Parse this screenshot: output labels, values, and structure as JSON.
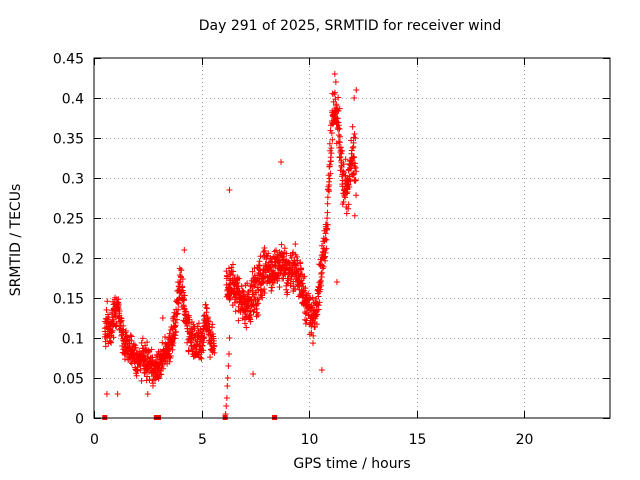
{
  "chart_data": {
    "type": "scatter",
    "title": "Day 291 of 2025, SRMTID for receiver wind",
    "xlabel": "GPS time / hours",
    "ylabel": "SRMTID / TECUs",
    "xlim": [
      0,
      24
    ],
    "ylim": [
      0,
      0.45
    ],
    "xticks": [
      0,
      5,
      10,
      15,
      20
    ],
    "xtick_labels": [
      "0",
      "5",
      "10",
      "15",
      "20"
    ],
    "yticks": [
      0,
      0.05,
      0.1,
      0.15,
      0.2,
      0.25,
      0.3,
      0.35,
      0.4,
      0.45
    ],
    "ytick_labels": [
      "0",
      "0.05",
      "0.1",
      "0.15",
      "0.2",
      "0.25",
      "0.3",
      "0.35",
      "0.4",
      "0.45"
    ],
    "grid": true,
    "marker": "+",
    "marker_color": "#ff0000",
    "series": [
      {
        "name": "SRMTID",
        "trend": [
          [
            0.5,
            0.11,
            0.03
          ],
          [
            0.8,
            0.12,
            0.035
          ],
          [
            1.1,
            0.14,
            0.02
          ],
          [
            1.4,
            0.09,
            0.02
          ],
          [
            1.7,
            0.085,
            0.025
          ],
          [
            2.0,
            0.07,
            0.02
          ],
          [
            2.3,
            0.075,
            0.025
          ],
          [
            2.6,
            0.065,
            0.025
          ],
          [
            2.9,
            0.06,
            0.02
          ],
          [
            3.2,
            0.075,
            0.025
          ],
          [
            3.5,
            0.09,
            0.025
          ],
          [
            3.8,
            0.12,
            0.03
          ],
          [
            4.0,
            0.17,
            0.025
          ],
          [
            4.3,
            0.12,
            0.03
          ],
          [
            4.6,
            0.1,
            0.03
          ],
          [
            5.0,
            0.09,
            0.03
          ],
          [
            5.2,
            0.13,
            0.03
          ],
          [
            5.5,
            0.09,
            0.025
          ],
          [
            6.3,
            0.17,
            0.04
          ],
          [
            6.6,
            0.16,
            0.03
          ],
          [
            7.0,
            0.14,
            0.03
          ],
          [
            7.3,
            0.15,
            0.04
          ],
          [
            7.6,
            0.16,
            0.04
          ],
          [
            8.0,
            0.19,
            0.03
          ],
          [
            8.3,
            0.18,
            0.03
          ],
          [
            8.7,
            0.2,
            0.035
          ],
          [
            9.0,
            0.18,
            0.03
          ],
          [
            9.4,
            0.19,
            0.03
          ],
          [
            9.8,
            0.15,
            0.03
          ],
          [
            10.2,
            0.12,
            0.03
          ],
          [
            10.5,
            0.17,
            0.03
          ],
          [
            10.8,
            0.23,
            0.03
          ],
          [
            11.0,
            0.34,
            0.05
          ],
          [
            11.2,
            0.39,
            0.03
          ],
          [
            11.4,
            0.36,
            0.04
          ],
          [
            11.6,
            0.29,
            0.04
          ],
          [
            11.8,
            0.28,
            0.04
          ],
          [
            12.0,
            0.33,
            0.04
          ],
          [
            12.2,
            0.3,
            0.06
          ]
        ],
        "notable_points": [
          [
            11.2,
            0.43
          ],
          [
            11.25,
            0.42
          ],
          [
            12.2,
            0.41
          ],
          [
            12.1,
            0.4
          ],
          [
            8.7,
            0.32
          ],
          [
            6.3,
            0.285
          ],
          [
            0.6,
            0.03
          ],
          [
            1.1,
            0.03
          ],
          [
            2.5,
            0.03
          ],
          [
            3.2,
            0.125
          ],
          [
            4.2,
            0.21
          ],
          [
            11.3,
            0.17
          ],
          [
            7.4,
            0.055
          ],
          [
            10.6,
            0.06
          ]
        ],
        "zero_points": [
          [
            0.5,
            0.0
          ],
          [
            2.9,
            0.0
          ],
          [
            3.0,
            0.0
          ],
          [
            6.1,
            0.0
          ],
          [
            8.4,
            0.0
          ]
        ],
        "rising_segment": [
          [
            6.12,
            0.005
          ],
          [
            6.15,
            0.015
          ],
          [
            6.18,
            0.025
          ],
          [
            6.2,
            0.04
          ],
          [
            6.22,
            0.05
          ],
          [
            6.25,
            0.065
          ],
          [
            6.28,
            0.08
          ],
          [
            6.3,
            0.1
          ]
        ]
      }
    ]
  }
}
